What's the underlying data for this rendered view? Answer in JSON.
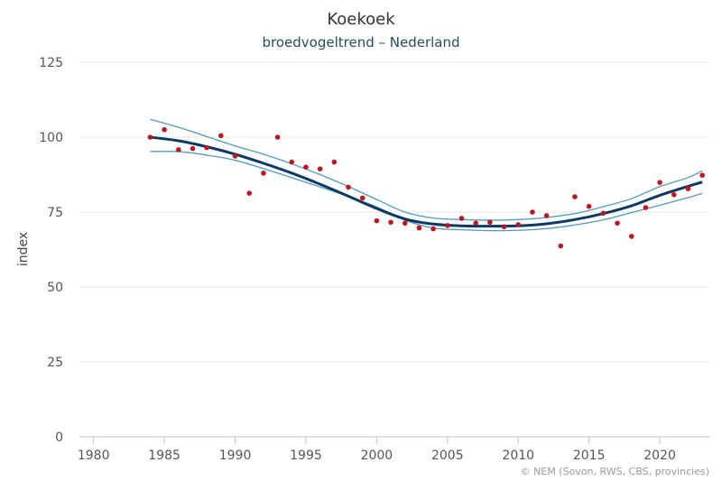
{
  "chart_data": {
    "type": "scatter",
    "title": "Koekoek",
    "subtitle": "broedvogeltrend – Nederland",
    "xlabel": "",
    "ylabel": "index",
    "xlim": [
      1979,
      2023.5
    ],
    "ylim": [
      0,
      125
    ],
    "xticks": [
      1980,
      1985,
      1990,
      1995,
      2000,
      2005,
      2010,
      2015,
      2020
    ],
    "yticks": [
      0,
      25,
      50,
      75,
      100,
      125
    ],
    "grid": "horizontal",
    "credit": "© NEM (Sovon, RWS, CBS, provincies)",
    "colors": {
      "points": "#c0151c",
      "trend": "#0b3a66",
      "band": "#4a9cc4",
      "grid": "#e6e6e6",
      "axis": "#b9c4d6"
    },
    "series": [
      {
        "kind": "points",
        "x": [
          1984,
          1985,
          1986,
          1987,
          1988,
          1989,
          1990,
          1991,
          1992,
          1993,
          1994,
          1995,
          1996,
          1997,
          1998,
          1999,
          2000,
          2001,
          2002,
          2003,
          2004,
          2005,
          2006,
          2007,
          2008,
          2009,
          2010,
          2011,
          2012,
          2013,
          2014,
          2015,
          2016,
          2017,
          2018,
          2019,
          2020,
          2021,
          2022,
          2023
        ],
        "values": [
          100,
          102.5,
          95.8,
          96.2,
          96.5,
          100.5,
          93.7,
          81.3,
          88,
          100,
          91.7,
          90,
          89.4,
          91.7,
          83.3,
          79.7,
          72.1,
          71.6,
          71.3,
          69.7,
          69.4,
          70.5,
          72.9,
          71.3,
          71.6,
          70.1,
          70.8,
          75,
          73.8,
          63.7,
          80.1,
          76.9,
          74.6,
          71.3,
          66.9,
          76.5,
          84.9,
          80.8,
          82.8,
          87.3
        ]
      },
      {
        "kind": "trend",
        "x": [
          1984,
          1986,
          1988,
          1990,
          1992,
          1994,
          1996,
          1998,
          2000,
          2002,
          2004,
          2006,
          2008,
          2010,
          2012,
          2014,
          2016,
          2018,
          2020,
          2022,
          2023
        ],
        "values": [
          100,
          98.8,
          96.8,
          94.3,
          91.3,
          88,
          84.3,
          80.3,
          76.2,
          72.7,
          71,
          70.4,
          70.3,
          70.4,
          71.1,
          72.5,
          74.5,
          77.1,
          80.6,
          83.6,
          85
        ]
      },
      {
        "kind": "upper",
        "x": [
          1984,
          1986,
          1988,
          1990,
          1992,
          1994,
          1996,
          1998,
          2000,
          2002,
          2004,
          2006,
          2008,
          2010,
          2012,
          2014,
          2016,
          2018,
          2020,
          2022,
          2023
        ],
        "values": [
          106,
          103.3,
          100.2,
          97.1,
          94.3,
          91.1,
          87.5,
          83.5,
          79.2,
          75,
          73,
          72.5,
          72.3,
          72.5,
          73.2,
          74.5,
          76.8,
          79.5,
          83.5,
          86.5,
          88.8
        ]
      },
      {
        "kind": "lower",
        "x": [
          1984,
          1986,
          1988,
          1990,
          1992,
          1994,
          1996,
          1998,
          2000,
          2002,
          2004,
          2006,
          2008,
          2010,
          2012,
          2014,
          2016,
          2018,
          2020,
          2022,
          2023
        ],
        "values": [
          95.2,
          95.2,
          94,
          92.3,
          89.5,
          86.5,
          83.4,
          80.2,
          76.7,
          72.3,
          69.7,
          69.1,
          68.8,
          68.9,
          69.5,
          70.7,
          72.4,
          74.8,
          77.3,
          79.8,
          81.3
        ]
      }
    ]
  }
}
